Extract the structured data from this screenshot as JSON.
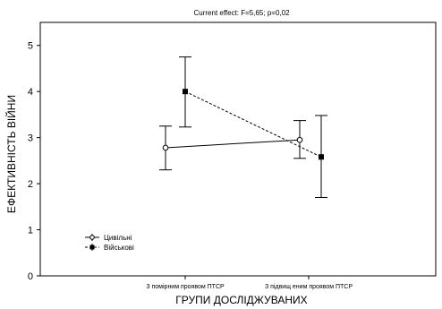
{
  "chart_data": {
    "type": "line",
    "title": "Current effect: F=5,65; p=0,02",
    "xlabel": "ГРУПИ ДОСЛІДЖУВАНИХ",
    "ylabel": "ЕФЕКТИВНІСТЬ ВІЙНИ",
    "categories": [
      "З помірним проявом ПТСР",
      "З підвищ еним проявом ПТСР"
    ],
    "ylim": [
      0,
      5.5
    ],
    "yticks": [
      "0",
      "1",
      "2",
      "3",
      "4",
      "5"
    ],
    "grid": false,
    "legend_position": "bottom-left",
    "series": [
      {
        "name": "Цивільні",
        "marker": "open-circle",
        "line": "solid",
        "values": [
          2.78,
          2.95
        ],
        "ci_low": [
          2.3,
          2.55
        ],
        "ci_high": [
          3.25,
          3.37
        ]
      },
      {
        "name": "Військові",
        "marker": "filled-square",
        "line": "dashed",
        "values": [
          4.0,
          2.58
        ],
        "ci_low": [
          3.23,
          1.7
        ],
        "ci_high": [
          4.75,
          3.48
        ]
      }
    ]
  }
}
